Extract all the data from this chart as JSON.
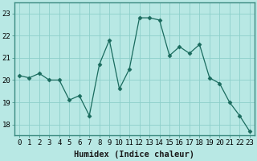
{
  "x": [
    0,
    1,
    2,
    3,
    4,
    5,
    6,
    7,
    8,
    9,
    10,
    11,
    12,
    13,
    14,
    15,
    16,
    17,
    18,
    19,
    20,
    21,
    22,
    23
  ],
  "y": [
    20.2,
    20.1,
    20.3,
    20.0,
    20.0,
    19.1,
    19.3,
    18.4,
    20.7,
    21.8,
    19.6,
    20.5,
    22.8,
    22.8,
    22.7,
    21.1,
    21.5,
    21.2,
    21.6,
    20.1,
    19.85,
    19.0,
    18.4,
    17.7
  ],
  "line_color": "#1a6b5e",
  "marker": "D",
  "marker_size": 2.5,
  "bg_color": "#b8e8e4",
  "grid_color": "#8ecfca",
  "xlabel": "Humidex (Indice chaleur)",
  "ylim": [
    17.5,
    23.5
  ],
  "xlim": [
    -0.5,
    23.5
  ],
  "yticks": [
    18,
    19,
    20,
    21,
    22,
    23
  ],
  "xtick_labels": [
    "0",
    "1",
    "2",
    "3",
    "4",
    "5",
    "6",
    "7",
    "8",
    "9",
    "10",
    "11",
    "12",
    "13",
    "14",
    "15",
    "16",
    "17",
    "18",
    "19",
    "20",
    "21",
    "22",
    "23"
  ],
  "xlabel_fontsize": 7.5,
  "tick_fontsize": 6.5
}
